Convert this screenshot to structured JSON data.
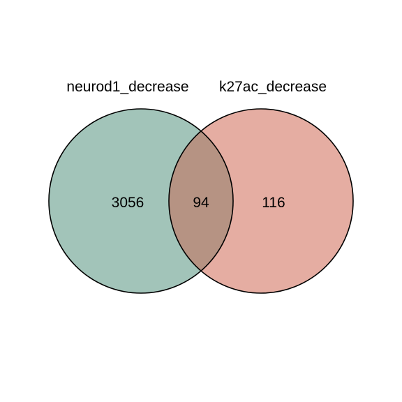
{
  "diagram": {
    "type": "venn",
    "sets": [
      {
        "name": "neurod1_decrease",
        "only_count": "3056",
        "color": "#A2C4B9"
      },
      {
        "name": "k27ac_decrease",
        "only_count": "116",
        "color": "#E5ADA2"
      }
    ],
    "intersection": {
      "count": "94",
      "color": "#B69383"
    }
  }
}
